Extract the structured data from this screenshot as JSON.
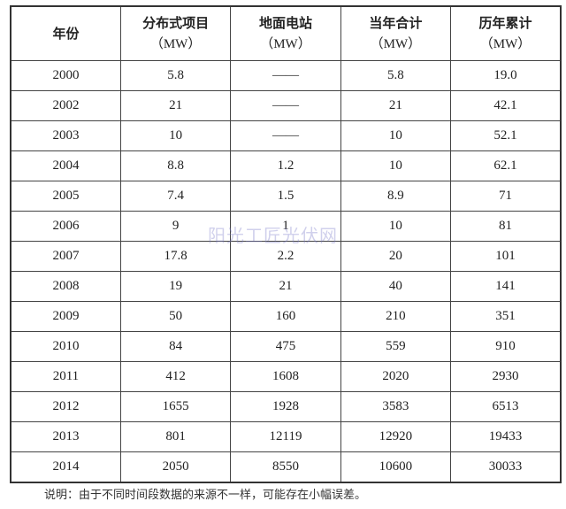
{
  "table": {
    "headers": [
      {
        "label": "年份",
        "unit": ""
      },
      {
        "label": "分布式项目",
        "unit": "（MW）"
      },
      {
        "label": "地面电站",
        "unit": "（MW）"
      },
      {
        "label": "当年合计",
        "unit": "（MW）"
      },
      {
        "label": "历年累计",
        "unit": "（MW）"
      }
    ],
    "rows": [
      [
        "2000",
        "5.8",
        "——",
        "5.8",
        "19.0"
      ],
      [
        "2002",
        "21",
        "——",
        "21",
        "42.1"
      ],
      [
        "2003",
        "10",
        "——",
        "10",
        "52.1"
      ],
      [
        "2004",
        "8.8",
        "1.2",
        "10",
        "62.1"
      ],
      [
        "2005",
        "7.4",
        "1.5",
        "8.9",
        "71"
      ],
      [
        "2006",
        "9",
        "1",
        "10",
        "81"
      ],
      [
        "2007",
        "17.8",
        "2.2",
        "20",
        "101"
      ],
      [
        "2008",
        "19",
        "21",
        "40",
        "141"
      ],
      [
        "2009",
        "50",
        "160",
        "210",
        "351"
      ],
      [
        "2010",
        "84",
        "475",
        "559",
        "910"
      ],
      [
        "2011",
        "412",
        "1608",
        "2020",
        "2930"
      ],
      [
        "2012",
        "1655",
        "1928",
        "3583",
        "6513"
      ],
      [
        "2013",
        "801",
        "12119",
        "12920",
        "19433"
      ],
      [
        "2014",
        "2050",
        "8550",
        "10600",
        "30033"
      ]
    ]
  },
  "note": "说明：由于不同时间段数据的来源不一样，可能存在小幅误差。",
  "watermark": "阳光工匠光伏网"
}
